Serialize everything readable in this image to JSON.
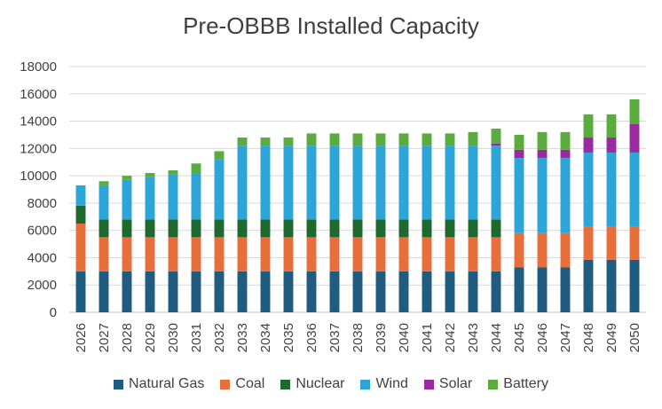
{
  "chart_data": {
    "type": "bar",
    "stacked": true,
    "title": "Pre-OBBB Installed Capacity",
    "xlabel": "",
    "ylabel": "",
    "ylim": [
      0,
      18000
    ],
    "yticks": [
      "0",
      "2000",
      "4000",
      "6000",
      "8000",
      "10000",
      "12000",
      "14000",
      "16000",
      "18000"
    ],
    "grid": true,
    "legend_position": "bottom",
    "categories": [
      "2026",
      "2027",
      "2028",
      "2029",
      "2030",
      "2031",
      "2032",
      "2033",
      "2034",
      "2035",
      "2036",
      "2037",
      "2038",
      "2039",
      "2040",
      "2041",
      "2042",
      "2043",
      "2044",
      "2045",
      "2046",
      "2047",
      "2048",
      "2049",
      "2050"
    ],
    "series": [
      {
        "name": "Natural Gas",
        "color": "#1f5c7f",
        "values": [
          3000,
          3000,
          3000,
          3000,
          3000,
          3000,
          3000,
          3000,
          3000,
          3000,
          3000,
          3000,
          3000,
          3000,
          3000,
          3000,
          3000,
          3000,
          3000,
          3300,
          3300,
          3300,
          3850,
          3850,
          3850
        ]
      },
      {
        "name": "Coal",
        "color": "#e86f3c",
        "values": [
          3500,
          2500,
          2500,
          2500,
          2500,
          2500,
          2500,
          2500,
          2500,
          2500,
          2500,
          2500,
          2500,
          2500,
          2500,
          2500,
          2500,
          2500,
          2500,
          2500,
          2500,
          2500,
          2450,
          2450,
          2450
        ]
      },
      {
        "name": "Nuclear",
        "color": "#1e6a2e",
        "values": [
          1300,
          1300,
          1300,
          1300,
          1300,
          1300,
          1300,
          1300,
          1300,
          1300,
          1300,
          1300,
          1300,
          1300,
          1300,
          1300,
          1300,
          1300,
          1300,
          0,
          0,
          0,
          0,
          0,
          0
        ]
      },
      {
        "name": "Wind",
        "color": "#2ea5d8",
        "values": [
          1500,
          2500,
          2900,
          3100,
          3300,
          3400,
          4400,
          5400,
          5400,
          5400,
          5400,
          5400,
          5400,
          5400,
          5400,
          5400,
          5400,
          5400,
          5400,
          5500,
          5500,
          5500,
          5400,
          5400,
          5400
        ]
      },
      {
        "name": "Solar",
        "color": "#9c2a9f",
        "values": [
          0,
          0,
          0,
          0,
          0,
          0,
          0,
          0,
          0,
          0,
          0,
          0,
          0,
          0,
          0,
          0,
          0,
          0,
          150,
          600,
          600,
          600,
          1100,
          1100,
          2100
        ]
      },
      {
        "name": "Battery",
        "color": "#5aac3e",
        "values": [
          0,
          300,
          300,
          300,
          300,
          700,
          600,
          600,
          600,
          600,
          900,
          900,
          900,
          900,
          900,
          900,
          900,
          1000,
          1100,
          1100,
          1300,
          1300,
          1700,
          1700,
          1800
        ]
      }
    ]
  }
}
